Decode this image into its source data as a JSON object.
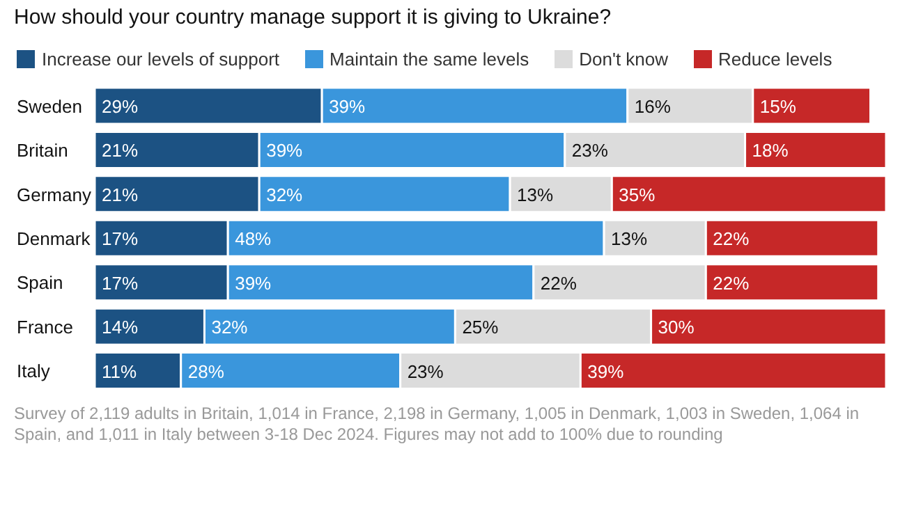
{
  "chart_data": {
    "type": "bar",
    "orientation": "horizontal",
    "stacked": true,
    "title": "How should your country manage support it is giving to Ukraine?",
    "legend": "top left",
    "categories": [
      "Sweden",
      "Britain",
      "Germany",
      "Denmark",
      "Spain",
      "France",
      "Italy"
    ],
    "series": [
      {
        "name": "Increase our levels of support",
        "color": "#1c5283",
        "values": [
          29,
          21,
          21,
          17,
          17,
          14,
          11
        ],
        "value_labels": [
          "29%",
          "21%",
          "21%",
          "17%",
          "17%",
          "14%",
          "11%"
        ]
      },
      {
        "name": "Maintain the same levels",
        "color": "#3a96dc",
        "values": [
          39,
          39,
          32,
          48,
          39,
          32,
          28
        ],
        "value_labels": [
          "39%",
          "39%",
          "32%",
          "48%",
          "39%",
          "32%",
          "28%"
        ]
      },
      {
        "name": "Don't know",
        "color": "#dcdcdc",
        "values": [
          16,
          23,
          13,
          13,
          22,
          25,
          23
        ],
        "value_labels": [
          "16%",
          "23%",
          "13%",
          "13%",
          "22%",
          "25%",
          "23%"
        ]
      },
      {
        "name": "Reduce levels",
        "color": "#c62828",
        "values": [
          15,
          18,
          35,
          22,
          22,
          30,
          39
        ],
        "value_labels": [
          "15%",
          "18%",
          "35%",
          "22%",
          "22%",
          "30%",
          "39%"
        ]
      }
    ],
    "annotations": [
      "Survey of 2,119 adults in Britain, 1,014 in France, 2,198 in Germany, 1,005 in Denmark, 1,003 in Sweden, 1,064 in Spain, and 1,011 in Italy between 3-18 Dec 2024. Figures may not add to 100% due to rounding"
    ]
  }
}
